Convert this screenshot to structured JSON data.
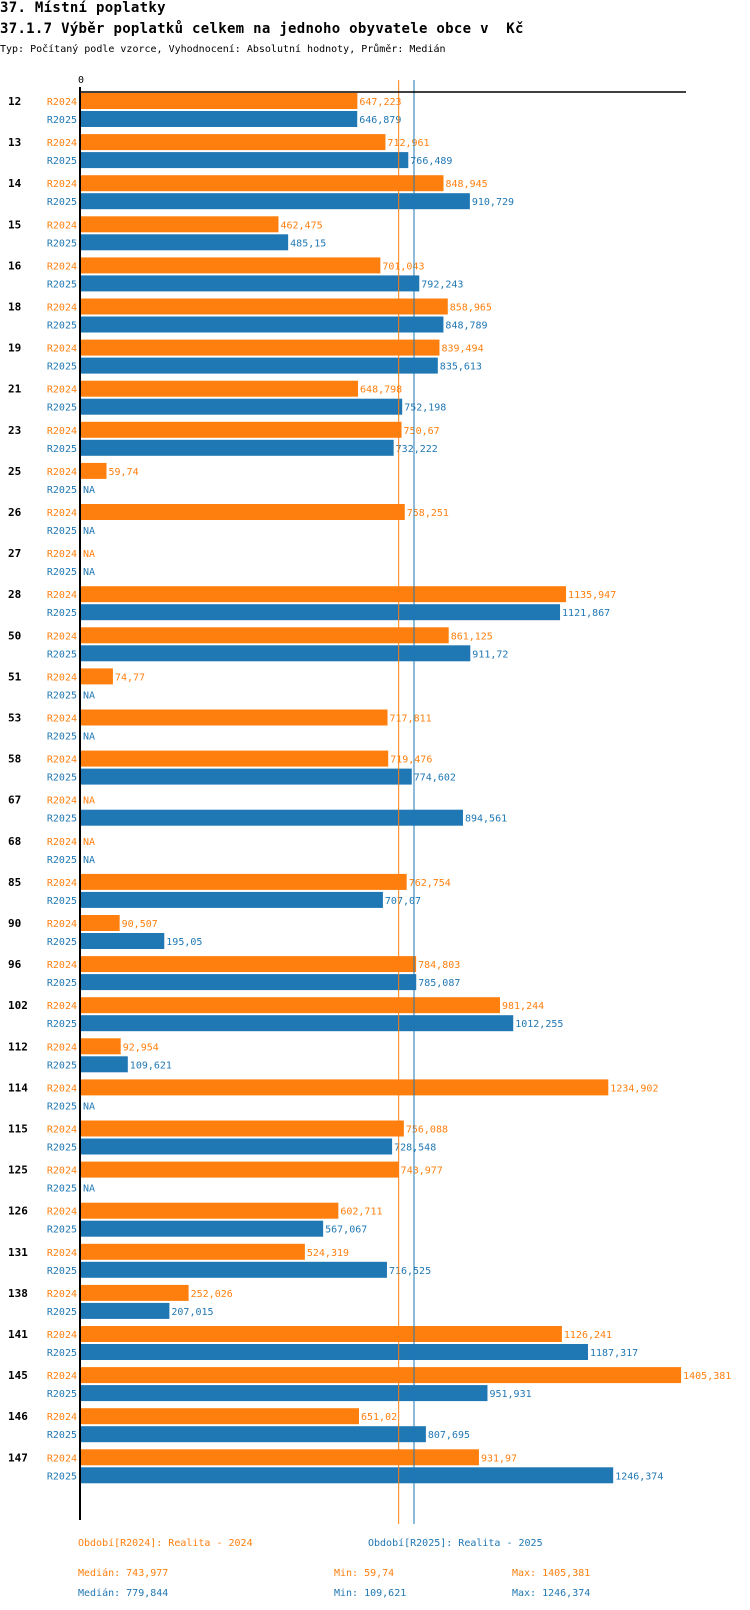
{
  "header": {
    "section_title": "37. Místní poplatky",
    "chart_title": "37.1.7 Výběr poplatků celkem na jednoho obyvatele obce v  Kč",
    "subtitle": "Typ: Počítaný podle vzorce, Vyhodnocení: Absolutní hodnoty, Průměr: Medián"
  },
  "chart_data": {
    "type": "bar",
    "orientation": "horizontal",
    "title": "37.1.7 Výběr poplatků celkem na jednoho obyvatele obce v  Kč",
    "xlabel": "",
    "ylabel": "",
    "axis_zero_label": "0",
    "xlim": [
      0,
      1420
    ],
    "grid": false,
    "colors": {
      "R2024": "#ff7f0e",
      "R2025": "#1f77b4"
    },
    "categories": [
      "12",
      "13",
      "14",
      "15",
      "16",
      "18",
      "19",
      "21",
      "23",
      "25",
      "26",
      "27",
      "28",
      "50",
      "51",
      "53",
      "58",
      "67",
      "68",
      "85",
      "90",
      "96",
      "102",
      "112",
      "114",
      "115",
      "125",
      "126",
      "131",
      "138",
      "141",
      "145",
      "146",
      "147"
    ],
    "series": [
      {
        "name": "R2024",
        "values": [
          647.223,
          712.961,
          848.945,
          462.475,
          701.043,
          858.965,
          839.494,
          648.798,
          750.67,
          59.74,
          758.251,
          null,
          1135.947,
          861.125,
          74.77,
          717.811,
          719.476,
          null,
          null,
          762.754,
          90.507,
          784.803,
          981.244,
          92.954,
          1234.902,
          756.088,
          743.977,
          602.711,
          524.319,
          252.026,
          1126.241,
          1405.381,
          651.02,
          931.97
        ],
        "labels": [
          "647,223",
          "712,961",
          "848,945",
          "462,475",
          "701,043",
          "858,965",
          "839,494",
          "648,798",
          "750,67",
          "59,74",
          "758,251",
          "NA",
          "1135,947",
          "861,125",
          "74,77",
          "717,811",
          "719,476",
          "NA",
          "NA",
          "762,754",
          "90,507",
          "784,803",
          "981,244",
          "92,954",
          "1234,902",
          "756,088",
          "743,977",
          "602,711",
          "524,319",
          "252,026",
          "1126,241",
          "1405,381",
          "651,02",
          "931,97"
        ]
      },
      {
        "name": "R2025",
        "values": [
          646.879,
          766.489,
          910.729,
          485.15,
          792.243,
          848.789,
          835.613,
          752.198,
          732.222,
          null,
          null,
          null,
          1121.867,
          911.72,
          null,
          null,
          774.602,
          894.561,
          null,
          707.07,
          195.05,
          785.087,
          1012.255,
          109.621,
          null,
          728.548,
          null,
          567.067,
          716.525,
          207.015,
          1187.317,
          951.931,
          807.695,
          1246.374
        ],
        "labels": [
          "646,879",
          "766,489",
          "910,729",
          "485,15",
          "792,243",
          "848,789",
          "835,613",
          "752,198",
          "732,222",
          "NA",
          "NA",
          "NA",
          "1121,867",
          "911,72",
          "NA",
          "NA",
          "774,602",
          "894,561",
          "NA",
          "707,07",
          "195,05",
          "785,087",
          "1012,255",
          "109,621",
          "NA",
          "728,548",
          "NA",
          "567,067",
          "716,525",
          "207,015",
          "1187,317",
          "951,931",
          "807,695",
          "1246,374"
        ]
      }
    ],
    "reference_lines": [
      {
        "series": "R2024",
        "type": "median",
        "value": 743.977
      },
      {
        "series": "R2025",
        "type": "median",
        "value": 779.844
      }
    ],
    "legend": [
      {
        "series": "R2024",
        "text": "Období[R2024]: Realita - 2024"
      },
      {
        "series": "R2025",
        "text": "Období[R2025]: Realita - 2025"
      }
    ],
    "legend_position": "bottom",
    "stats": [
      {
        "series": "R2024",
        "median": "Medián: 743,977",
        "min": "Min: 59,74",
        "max": "Max: 1405,381"
      },
      {
        "series": "R2025",
        "median": "Medián: 779,844",
        "min": "Min: 109,621",
        "max": "Max: 1246,374"
      }
    ]
  }
}
